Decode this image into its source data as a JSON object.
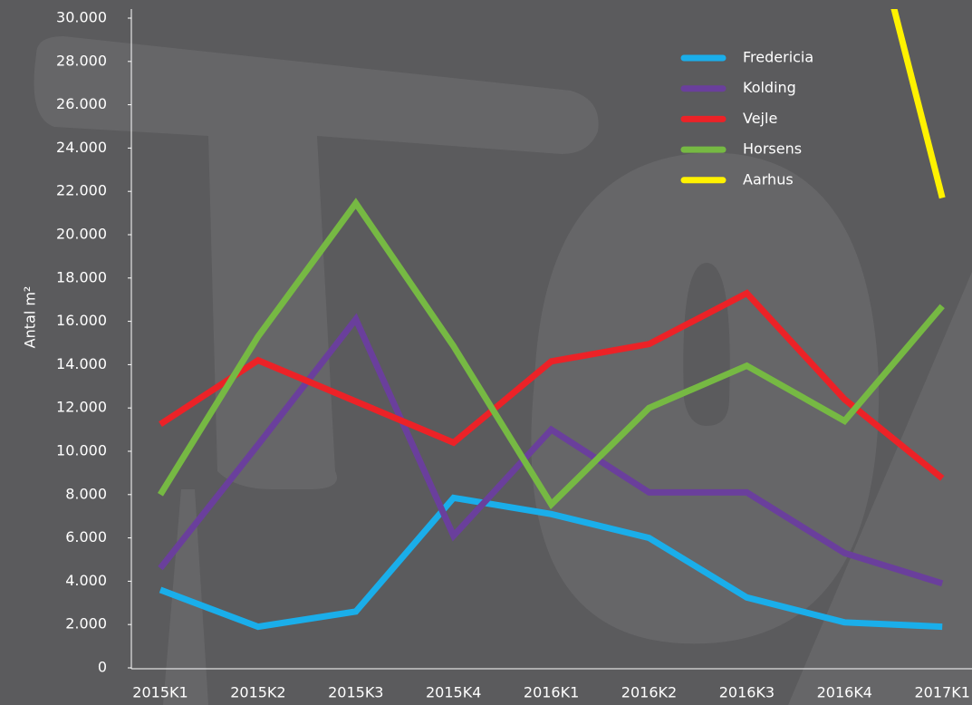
{
  "chart_data": {
    "type": "line",
    "y_label": "Antal m²",
    "categories": [
      "2015K1",
      "2015K2",
      "2015K3",
      "2015K4",
      "2016K1",
      "2016K2",
      "2016K3",
      "2016K4",
      "2017K1"
    ],
    "series": [
      {
        "name": "Fredericia",
        "color": "#1aaeea",
        "values": [
          3600,
          1900,
          2600,
          7850,
          7100,
          6000,
          3250,
          2100,
          1900
        ]
      },
      {
        "name": "Kolding",
        "color": "#6a3f9c",
        "values": [
          4600,
          10300,
          16100,
          6100,
          11000,
          8100,
          8100,
          5300,
          3900
        ]
      },
      {
        "name": "Vejle",
        "color": "#ec2227",
        "values": [
          11250,
          14200,
          12300,
          10400,
          14150,
          14950,
          17300,
          12400,
          8750
        ]
      },
      {
        "name": "Horsens",
        "color": "#76b943",
        "values": [
          8000,
          15300,
          21450,
          14850,
          7550,
          12000,
          13950,
          11400,
          16700
        ]
      },
      {
        "name": "Aarhus",
        "color": "#fff200",
        "values": [
          null,
          null,
          null,
          null,
          null,
          null,
          null,
          39400,
          21700
        ]
      }
    ],
    "ylim": [
      0,
      30000
    ],
    "yticks": [
      0,
      {
        "value": 2000,
        "label": "2.000"
      },
      {
        "value": 4000,
        "label": "4.000"
      },
      {
        "value": 6000,
        "label": "6.000"
      },
      {
        "value": 8000,
        "label": "8.000"
      },
      {
        "value": 10000,
        "label": "10.000"
      },
      {
        "value": 12000,
        "label": "12.000"
      },
      {
        "value": 14000,
        "label": "14.000"
      },
      {
        "value": 16000,
        "label": "16.000"
      },
      {
        "value": 18000,
        "label": "18.000"
      },
      {
        "value": 20000,
        "label": "20.000"
      },
      {
        "value": 22000,
        "label": "22.000"
      },
      {
        "value": 24000,
        "label": "24.000"
      },
      {
        "value": 26000,
        "label": "26.000"
      },
      {
        "value": 28000,
        "label": "28.000"
      },
      {
        "value": 30000,
        "label": "30.000"
      }
    ],
    "legend": "top-right"
  }
}
